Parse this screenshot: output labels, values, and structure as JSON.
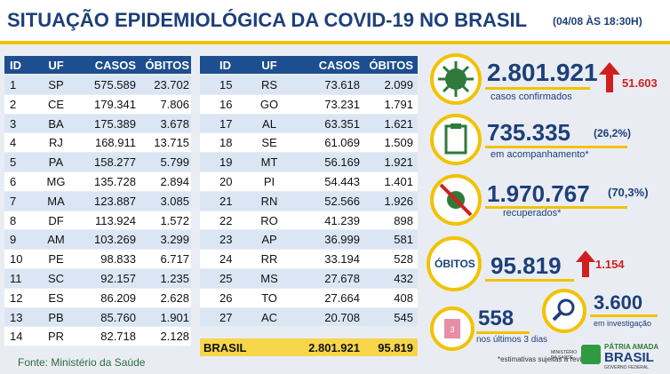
{
  "header": {
    "title": "SITUAÇÃO EPIDEMIOLÓGICA DA COVID-19 NO BRASIL",
    "date": "(04/08 ÀS 18:30H)"
  },
  "table_left": {
    "columns": [
      "ID",
      "UF",
      "CASOS",
      "ÓBITOS"
    ],
    "rows": [
      [
        "1",
        "SP",
        "575.589",
        "23.702"
      ],
      [
        "2",
        "CE",
        "179.341",
        "7.806"
      ],
      [
        "3",
        "BA",
        "175.389",
        "3.678"
      ],
      [
        "4",
        "RJ",
        "168.911",
        "13.715"
      ],
      [
        "5",
        "PA",
        "158.277",
        "5.799"
      ],
      [
        "6",
        "MG",
        "135.728",
        "2.894"
      ],
      [
        "7",
        "MA",
        "123.887",
        "3.085"
      ],
      [
        "8",
        "DF",
        "113.924",
        "1.572"
      ],
      [
        "9",
        "AM",
        "103.269",
        "3.299"
      ],
      [
        "10",
        "PE",
        "98.833",
        "6.717"
      ],
      [
        "11",
        "SC",
        "92.157",
        "1.235"
      ],
      [
        "12",
        "ES",
        "86.209",
        "2.628"
      ],
      [
        "13",
        "PB",
        "85.760",
        "1.901"
      ],
      [
        "14",
        "PR",
        "82.718",
        "2.128"
      ]
    ]
  },
  "table_right": {
    "columns": [
      "ID",
      "UF",
      "CASOS",
      "ÓBITOS"
    ],
    "rows": [
      [
        "15",
        "RS",
        "73.618",
        "2.099"
      ],
      [
        "16",
        "GO",
        "73.231",
        "1.791"
      ],
      [
        "17",
        "AL",
        "63.351",
        "1.621"
      ],
      [
        "18",
        "SE",
        "61.069",
        "1.509"
      ],
      [
        "19",
        "MT",
        "56.169",
        "1.921"
      ],
      [
        "20",
        "PI",
        "54.443",
        "1.401"
      ],
      [
        "21",
        "RN",
        "52.566",
        "1.926"
      ],
      [
        "22",
        "RO",
        "41.239",
        "898"
      ],
      [
        "23",
        "AP",
        "36.999",
        "581"
      ],
      [
        "24",
        "RR",
        "33.194",
        "528"
      ],
      [
        "25",
        "MS",
        "27.678",
        "432"
      ],
      [
        "26",
        "TO",
        "27.664",
        "408"
      ],
      [
        "27",
        "AC",
        "20.708",
        "545"
      ]
    ],
    "total": [
      "BRASIL",
      "2.801.921",
      "95.819"
    ]
  },
  "source": "Fonte: Ministério da Saúde",
  "confirmed": {
    "value": "2.801.921",
    "label": "casos confirmados",
    "increase": "51.603"
  },
  "monitoring": {
    "value": "735.335",
    "percent": "(26,2%)",
    "label": "em acompanhamento*"
  },
  "recovered": {
    "value": "1.970.767",
    "percent": "(70,3%)",
    "label": "recuperados*"
  },
  "deaths": {
    "label": "ÓBITOS",
    "value": "95.819",
    "increase": "1.154"
  },
  "recent_deaths": {
    "icon": "3",
    "value": "558",
    "label": "nos últimos 3 dias"
  },
  "investigation": {
    "value": "3.600",
    "label": "em investigação"
  },
  "footnote": "*estimativas sujeitas à revisão.",
  "logos": {
    "ministry": "MINISTÉRIO DA SAÚDE",
    "slogan": "PÁTRIA AMADA",
    "country": "BRASIL",
    "government": "GOVERNO FEDERAL"
  }
}
